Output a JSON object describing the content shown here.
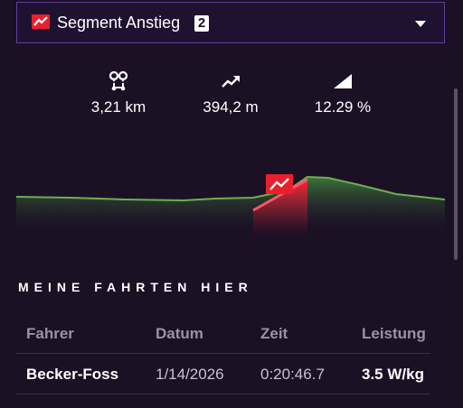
{
  "segment": {
    "title": "Segment Anstieg",
    "badge": "2"
  },
  "stats": [
    {
      "icon": "route-pins-icon",
      "value": "3,21 km"
    },
    {
      "icon": "trend-up-icon",
      "value": "394,2 m"
    },
    {
      "icon": "gradient-slope-icon",
      "value": "12.29 %"
    }
  ],
  "colors": {
    "accent_border": "#5d3fa0",
    "profile_green": "#3f7a3a",
    "segment_red": "#ff1f3a",
    "background": "#1b1024"
  },
  "rides": {
    "title": "MEINE FAHRTEN HIER",
    "columns": [
      "Fahrer",
      "Datum",
      "Zeit",
      "Leistung"
    ],
    "rows": [
      [
        "Becker-Foss",
        "1/14/2026",
        "0:20:46.7",
        "3.5 W/kg"
      ]
    ]
  }
}
